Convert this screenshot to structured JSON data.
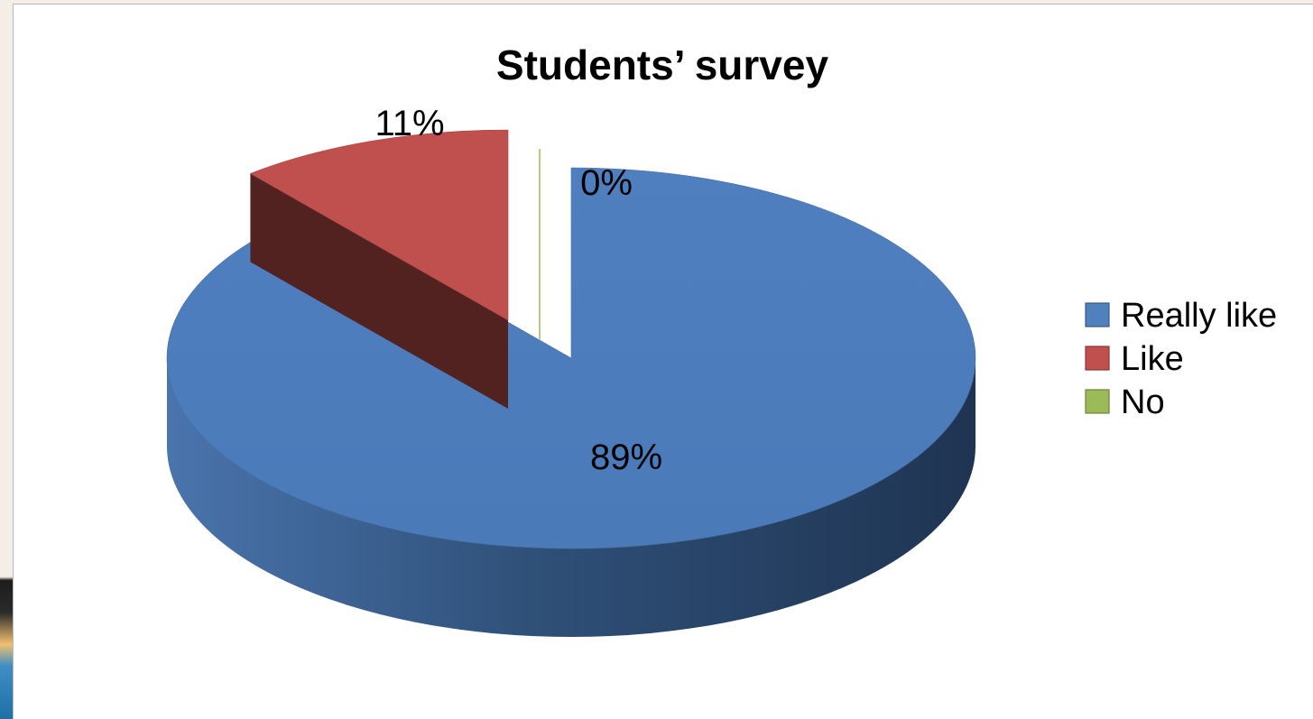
{
  "chart_data": {
    "type": "pie",
    "title": "Students’ survey",
    "categories": [
      "Really like",
      "Like",
      "No"
    ],
    "values": [
      89,
      11,
      0
    ],
    "data_labels": [
      "89%",
      "11%",
      "0%"
    ],
    "colors": [
      "#4f81bd",
      "#c0504d",
      "#9bbb59"
    ],
    "legend_position": "right",
    "style": "3d-exploded"
  }
}
